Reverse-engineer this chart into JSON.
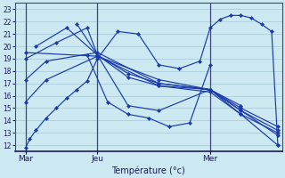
{
  "bg_color": "#cce8f0",
  "line_color": "#1a3aaa",
  "marker_color": "#1a3aaa",
  "grid_color": "#a8c8d8",
  "ylim": [
    11.5,
    23.5
  ],
  "yticks": [
    12,
    13,
    14,
    15,
    16,
    17,
    18,
    19,
    20,
    21,
    22,
    23
  ],
  "xlim": [
    0,
    130
  ],
  "xtick_positions": [
    5,
    40,
    95
  ],
  "xtick_labels": [
    "Mar",
    "Jeu",
    "Mer"
  ],
  "vline_positions": [
    5,
    40,
    95
  ],
  "xlabel": "Température (°c)",
  "lines": [
    {
      "x": [
        5,
        7,
        10,
        15,
        20,
        25,
        30,
        35,
        40,
        50,
        60,
        70,
        80,
        90,
        95,
        100,
        105,
        110,
        115,
        120,
        125,
        128
      ],
      "y": [
        11.8,
        12.5,
        13.2,
        14.2,
        15.0,
        15.8,
        16.5,
        17.2,
        19.0,
        21.2,
        21.0,
        18.5,
        18.2,
        18.8,
        21.5,
        22.2,
        22.5,
        22.5,
        22.3,
        21.8,
        21.2,
        12.0
      ]
    },
    {
      "x": [
        5,
        15,
        40,
        70,
        95,
        110,
        128
      ],
      "y": [
        15.5,
        17.3,
        19.2,
        16.8,
        16.5,
        14.5,
        12.0
      ]
    },
    {
      "x": [
        5,
        15,
        40,
        70,
        95,
        110,
        128
      ],
      "y": [
        17.3,
        18.8,
        19.5,
        17.0,
        16.5,
        14.8,
        12.8
      ]
    },
    {
      "x": [
        5,
        20,
        35,
        40,
        55,
        70,
        95,
        110,
        128
      ],
      "y": [
        19.0,
        20.3,
        21.5,
        19.3,
        17.5,
        16.8,
        16.3,
        14.5,
        13.0
      ]
    },
    {
      "x": [
        10,
        25,
        40,
        55,
        70,
        95,
        110,
        128
      ],
      "y": [
        20.0,
        21.5,
        19.3,
        17.8,
        17.0,
        16.5,
        14.8,
        13.2
      ]
    },
    {
      "x": [
        5,
        40,
        70,
        95,
        110,
        128
      ],
      "y": [
        19.5,
        19.2,
        17.3,
        16.5,
        15.0,
        13.5
      ]
    },
    {
      "x": [
        30,
        40,
        55,
        70,
        95,
        110
      ],
      "y": [
        21.8,
        19.3,
        15.2,
        14.8,
        16.5,
        15.2
      ]
    },
    {
      "x": [
        35,
        45,
        55,
        65,
        75,
        85,
        95
      ],
      "y": [
        19.3,
        15.5,
        14.5,
        14.2,
        13.5,
        13.8,
        18.5
      ]
    }
  ]
}
